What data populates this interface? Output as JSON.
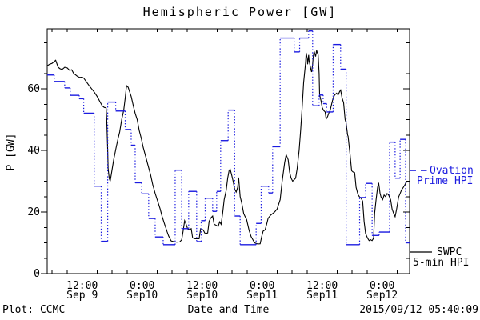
{
  "window": {
    "background": "#ffffff"
  },
  "colors": {
    "ovation_blue": "#1b1be0",
    "swpc_black": "#000000",
    "frame": "#000000"
  },
  "footer": {
    "left": "Plot: CCMC",
    "timestamp": "2015/09/12 05:40:09"
  },
  "legend": {
    "ovation": {
      "line1": "Ovation",
      "line2": "Prime HPI",
      "marker": "dashed-blue"
    },
    "swpc": {
      "line1": "SWPC",
      "line2": "5-min HPI",
      "marker": "solid-black"
    }
  },
  "chart_data": {
    "type": "line",
    "title": "Hemispheric Power [GW]",
    "xlabel": "Date and Time",
    "ylabel": "P [GW]",
    "ylim": [
      0,
      79.5
    ],
    "x_span_hours": 72.5,
    "grid": false,
    "y_major_ticks": [
      {
        "v": 0,
        "label": "0"
      },
      {
        "v": 20,
        "label": "20"
      },
      {
        "v": 40,
        "label": "40"
      },
      {
        "v": 60,
        "label": "60"
      }
    ],
    "y_minor_step": 5,
    "x_major_ticks": [
      {
        "t": 7,
        "time": "12:00",
        "date": "Sep 9"
      },
      {
        "t": 19,
        "time": "0:00",
        "date": "Sep10"
      },
      {
        "t": 31,
        "time": "12:00",
        "date": "Sep10"
      },
      {
        "t": 43,
        "time": "0:00",
        "date": "Sep11"
      },
      {
        "t": 55,
        "time": "12:00",
        "date": "Sep11"
      },
      {
        "t": 67,
        "time": "0:00",
        "date": "Sep12"
      }
    ],
    "x_minor_first_t": 1,
    "x_minor_step_hours": 3,
    "series": [
      {
        "name": "SWPC 5-min HPI",
        "style": "solid-line",
        "color": "#000000",
        "points": [
          [
            0,
            67.5
          ],
          [
            0.5,
            68
          ],
          [
            1,
            68.3
          ],
          [
            1.7,
            69.3
          ],
          [
            2.2,
            67
          ],
          [
            2.6,
            66.5
          ],
          [
            3,
            66.3
          ],
          [
            3.5,
            67
          ],
          [
            4,
            66.8
          ],
          [
            4.5,
            66
          ],
          [
            4.9,
            66.2
          ],
          [
            5.3,
            65
          ],
          [
            5.7,
            64.5
          ],
          [
            6.1,
            64
          ],
          [
            6.5,
            63.7
          ],
          [
            7,
            63.8
          ],
          [
            7.3,
            63.5
          ],
          [
            7.8,
            62.4
          ],
          [
            8.4,
            61
          ],
          [
            9,
            59.8
          ],
          [
            9.4,
            59
          ],
          [
            10,
            57.5
          ],
          [
            10.5,
            56
          ],
          [
            11,
            54.5
          ],
          [
            11.4,
            54
          ],
          [
            11.8,
            53.8
          ],
          [
            11.9,
            50
          ],
          [
            12.1,
            40
          ],
          [
            12.2,
            34
          ],
          [
            12.4,
            31
          ],
          [
            12.6,
            30
          ],
          [
            12.9,
            33
          ],
          [
            13.3,
            37
          ],
          [
            13.8,
            41
          ],
          [
            14.2,
            44
          ],
          [
            14.5,
            46
          ],
          [
            14.9,
            50
          ],
          [
            15.3,
            53
          ],
          [
            15.6,
            57
          ],
          [
            15.8,
            60
          ],
          [
            15.9,
            61
          ],
          [
            16.2,
            60.5
          ],
          [
            16.5,
            59
          ],
          [
            16.8,
            57.5
          ],
          [
            17.3,
            54
          ],
          [
            17.6,
            52
          ],
          [
            18,
            50
          ],
          [
            18.4,
            46.5
          ],
          [
            18.8,
            44
          ],
          [
            19.2,
            41
          ],
          [
            19.7,
            38
          ],
          [
            20.2,
            35
          ],
          [
            20.7,
            32
          ],
          [
            21.1,
            29
          ],
          [
            21.6,
            26
          ],
          [
            22.1,
            23.5
          ],
          [
            22.6,
            21
          ],
          [
            23,
            18.5
          ],
          [
            23.5,
            16
          ],
          [
            24,
            13.5
          ],
          [
            24.3,
            12.2
          ],
          [
            24.8,
            10.6
          ],
          [
            25.3,
            10.4
          ],
          [
            25.9,
            10.2
          ],
          [
            26.5,
            10.3
          ],
          [
            26.9,
            11
          ],
          [
            27.2,
            14
          ],
          [
            27.5,
            17.2
          ],
          [
            27.8,
            16
          ],
          [
            28.1,
            14.5
          ],
          [
            28.5,
            14.3
          ],
          [
            28.8,
            14.6
          ],
          [
            29.1,
            11.6
          ],
          [
            29.6,
            11.3
          ],
          [
            30.4,
            11.3
          ],
          [
            30.7,
            14.6
          ],
          [
            31.2,
            14.2
          ],
          [
            31.6,
            13
          ],
          [
            32.1,
            13.2
          ],
          [
            32.4,
            17
          ],
          [
            32.7,
            18
          ],
          [
            33.1,
            18.7
          ],
          [
            33.4,
            16
          ],
          [
            33.7,
            15.8
          ],
          [
            34.2,
            15.3
          ],
          [
            34.5,
            16.8
          ],
          [
            34.8,
            16
          ],
          [
            35.1,
            19.6
          ],
          [
            35.4,
            24
          ],
          [
            35.8,
            27
          ],
          [
            36.1,
            31
          ],
          [
            36.4,
            33.5
          ],
          [
            36.6,
            33.9
          ],
          [
            36.9,
            32
          ],
          [
            37.2,
            30
          ],
          [
            37.5,
            27.5
          ],
          [
            37.8,
            26.5
          ],
          [
            38.1,
            28
          ],
          [
            38.3,
            31.2
          ],
          [
            38.6,
            25
          ],
          [
            38.9,
            23
          ],
          [
            39.3,
            19.5
          ],
          [
            39.6,
            18.5
          ],
          [
            39.9,
            17.5
          ],
          [
            40.4,
            14
          ],
          [
            40.8,
            12
          ],
          [
            41.5,
            10
          ],
          [
            42.1,
            9.6
          ],
          [
            42.6,
            9.7
          ],
          [
            42.9,
            12
          ],
          [
            43.2,
            13.8
          ],
          [
            43.6,
            14.2
          ],
          [
            43.9,
            16
          ],
          [
            44.2,
            18
          ],
          [
            44.7,
            19
          ],
          [
            45.1,
            19.5
          ],
          [
            45.5,
            20
          ],
          [
            46,
            21
          ],
          [
            46.6,
            24
          ],
          [
            47,
            30
          ],
          [
            47.5,
            36
          ],
          [
            47.8,
            38.6
          ],
          [
            48.2,
            37
          ],
          [
            48.5,
            33
          ],
          [
            48.8,
            31
          ],
          [
            49.1,
            30
          ],
          [
            49.4,
            30.5
          ],
          [
            49.7,
            31
          ],
          [
            50,
            34
          ],
          [
            50.4,
            40
          ],
          [
            50.7,
            46.5
          ],
          [
            51,
            54
          ],
          [
            51.3,
            62
          ],
          [
            51.7,
            68.5
          ],
          [
            51.8,
            71.7
          ],
          [
            52,
            70
          ],
          [
            52.1,
            68
          ],
          [
            52.3,
            71
          ],
          [
            52.4,
            69
          ],
          [
            52.6,
            67.5
          ],
          [
            52.8,
            66
          ],
          [
            52.9,
            65.5
          ],
          [
            53.1,
            68
          ],
          [
            53.2,
            70
          ],
          [
            53.4,
            72.2
          ],
          [
            53.6,
            71
          ],
          [
            53.7,
            70.5
          ],
          [
            53.9,
            72.5
          ],
          [
            54,
            72
          ],
          [
            54.2,
            71
          ],
          [
            54.4,
            65
          ],
          [
            54.5,
            58.1
          ],
          [
            54.8,
            56
          ],
          [
            55,
            54
          ],
          [
            55.3,
            53
          ],
          [
            55.6,
            52.5
          ],
          [
            55.8,
            50.2
          ],
          [
            56.1,
            51
          ],
          [
            56.3,
            52
          ],
          [
            56.6,
            53
          ],
          [
            56.9,
            55
          ],
          [
            57.2,
            57
          ],
          [
            57.5,
            58
          ],
          [
            57.9,
            58.6
          ],
          [
            58.2,
            58
          ],
          [
            58.5,
            59.1
          ],
          [
            58.7,
            59.6
          ],
          [
            59,
            57
          ],
          [
            59.3,
            55.5
          ],
          [
            59.6,
            50
          ],
          [
            59.8,
            49
          ],
          [
            60.1,
            45
          ],
          [
            60.2,
            44.6
          ],
          [
            60.6,
            38.6
          ],
          [
            60.9,
            33.4
          ],
          [
            61.2,
            33
          ],
          [
            61.5,
            32.8
          ],
          [
            61.8,
            28
          ],
          [
            62.2,
            25.6
          ],
          [
            62.5,
            24.9
          ],
          [
            62.8,
            24.5
          ],
          [
            63.1,
            23.5
          ],
          [
            63.4,
            17
          ],
          [
            63.7,
            13
          ],
          [
            64.1,
            11.5
          ],
          [
            64.4,
            10.7
          ],
          [
            64.7,
            11
          ],
          [
            65,
            10.7
          ],
          [
            65.3,
            11.5
          ],
          [
            65.5,
            19.6
          ],
          [
            65.8,
            24
          ],
          [
            66.1,
            28
          ],
          [
            66.3,
            29.5
          ],
          [
            66.6,
            26
          ],
          [
            66.8,
            24.8
          ],
          [
            67.1,
            24
          ],
          [
            67.4,
            25.5
          ],
          [
            67.7,
            25
          ],
          [
            68,
            26
          ],
          [
            68.3,
            25.5
          ],
          [
            68.7,
            24
          ],
          [
            69,
            21
          ],
          [
            69.3,
            19.6
          ],
          [
            69.6,
            18.5
          ],
          [
            69.9,
            21
          ],
          [
            70.3,
            24.9
          ],
          [
            70.6,
            26
          ],
          [
            70.9,
            27.2
          ],
          [
            71.2,
            27.9
          ],
          [
            71.5,
            28.7
          ],
          [
            71.8,
            29.6
          ],
          [
            72.2,
            30
          ],
          [
            72.5,
            30
          ]
        ]
      },
      {
        "name": "Ovation Prime HPI",
        "style": "steps-dotted",
        "color": "#1b1be0",
        "points": [
          [
            0,
            64.5
          ],
          [
            1.4,
            62.4
          ],
          [
            3.5,
            60.3
          ],
          [
            4.6,
            57.9
          ],
          [
            6.4,
            56.8
          ],
          [
            7.3,
            52.1
          ],
          [
            9.4,
            28.4
          ],
          [
            10.8,
            10.5
          ],
          [
            12.1,
            55.7
          ],
          [
            13.7,
            52.8
          ],
          [
            15.6,
            46.8
          ],
          [
            16.8,
            41.7
          ],
          [
            17.6,
            29.5
          ],
          [
            18.9,
            25.9
          ],
          [
            20.3,
            17.9
          ],
          [
            21.6,
            11.9
          ],
          [
            23.2,
            9.4
          ],
          [
            25.6,
            33.6
          ],
          [
            26.9,
            14.6
          ],
          [
            28.3,
            26.7
          ],
          [
            29.9,
            10.4
          ],
          [
            30.8,
            17.2
          ],
          [
            31.6,
            24.5
          ],
          [
            33.1,
            20.2
          ],
          [
            33.9,
            26.7
          ],
          [
            34.7,
            43.2
          ],
          [
            36.2,
            53.1
          ],
          [
            37.5,
            18.7
          ],
          [
            38.6,
            9.4
          ],
          [
            41.8,
            16.3
          ],
          [
            42.8,
            28.4
          ],
          [
            44.3,
            26.2
          ],
          [
            45.1,
            41.2
          ],
          [
            46.6,
            76.5
          ],
          [
            49.4,
            72.0
          ],
          [
            50.5,
            76.5
          ],
          [
            52.3,
            78.8
          ],
          [
            53.1,
            54.5
          ],
          [
            54.4,
            58.0
          ],
          [
            55.2,
            55.2
          ],
          [
            55.9,
            52.5
          ],
          [
            57.2,
            74.4
          ],
          [
            58.7,
            66.4
          ],
          [
            59.8,
            9.4
          ],
          [
            62.5,
            24.7
          ],
          [
            63.7,
            29.3
          ],
          [
            65.0,
            12.4
          ],
          [
            66.4,
            13.5
          ],
          [
            68.5,
            42.7
          ],
          [
            69.6,
            31.0
          ],
          [
            70.6,
            43.6
          ],
          [
            71.7,
            10.0
          ],
          [
            72.5,
            10.0
          ]
        ]
      }
    ]
  }
}
